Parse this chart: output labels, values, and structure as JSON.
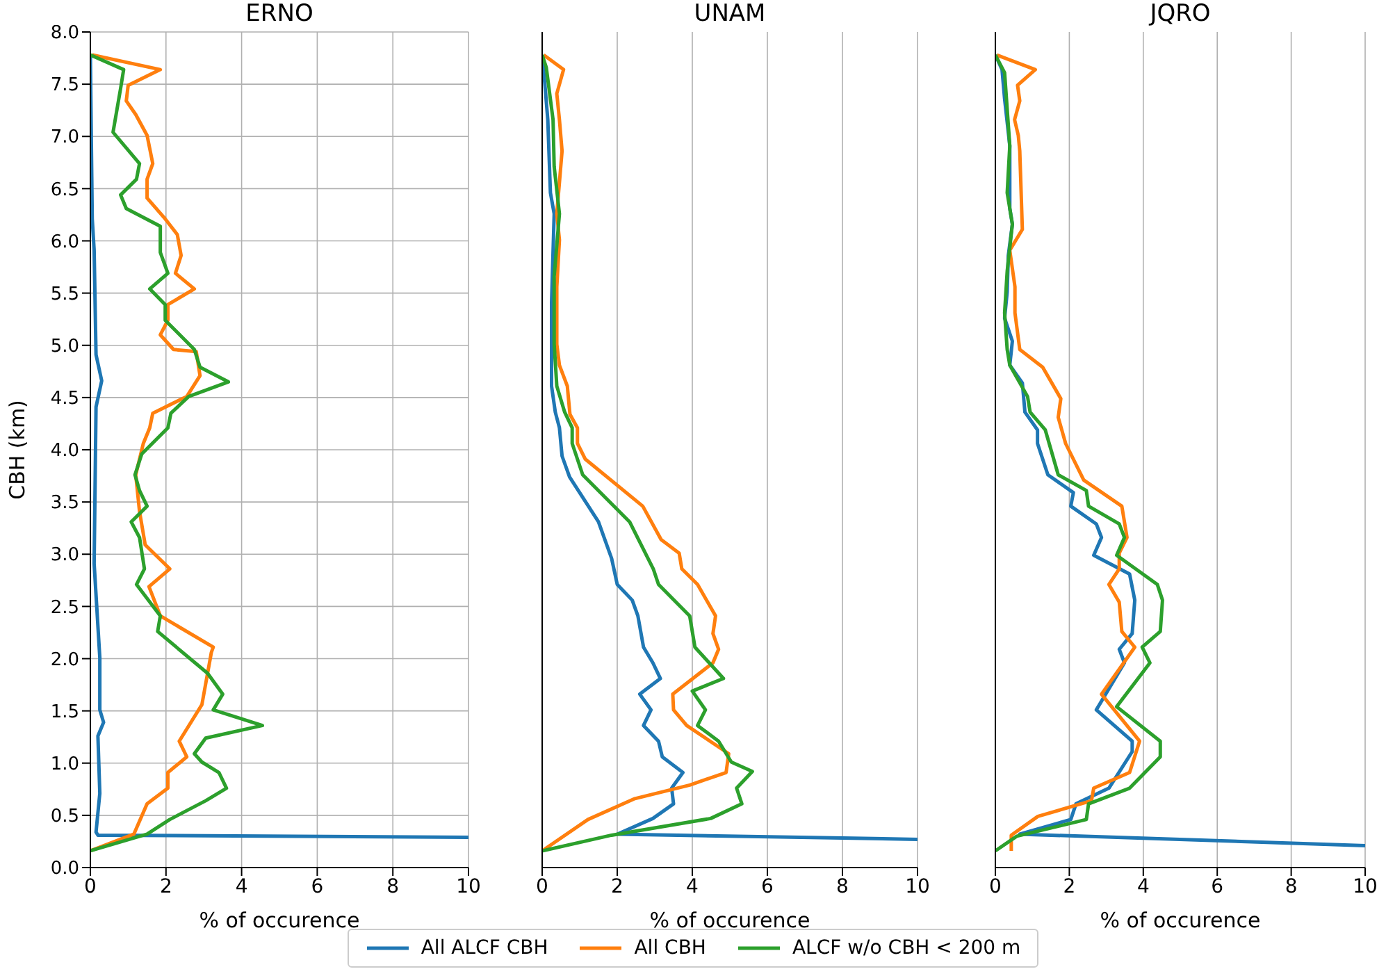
{
  "chart_data": [
    {
      "type": "line",
      "title": "ERNO",
      "xlabel": "% of occurence",
      "ylabel": "CBH (km)",
      "xlim": [
        0,
        10
      ],
      "xticks": [
        0,
        2,
        4,
        6,
        8,
        10
      ],
      "ylim": [
        0,
        8
      ],
      "yticks": [
        {
          "value": 0,
          "label": "0.0"
        },
        0.5,
        {
          "value": 1,
          "label": "1.0"
        },
        1.5,
        {
          "value": 2,
          "label": "2.0"
        },
        2.5,
        {
          "value": 3,
          "label": "3.0"
        },
        3.5,
        {
          "value": 4,
          "label": "4.0"
        },
        4.5,
        {
          "value": 5,
          "label": "5.0"
        },
        5.5,
        {
          "value": 6,
          "label": "6.0"
        },
        6.5,
        {
          "value": 7,
          "label": "7.0"
        },
        7.5,
        {
          "value": 8,
          "label": "8.0"
        }
      ],
      "grid": true,
      "legend": "bottom",
      "marker": "none",
      "line_style": "solid",
      "series": [
        {
          "name": "All ALCF CBH",
          "color": "#1f77b4",
          "x": [
            0,
            0.05,
            0.1,
            0.15,
            0.3,
            0.15,
            0.1,
            0.25,
            0.25,
            0.35,
            0.2,
            0.25,
            0.15,
            0.2,
            10
          ],
          "values": [
            7.78,
            6.21,
            5.91,
            4.91,
            4.66,
            4.41,
            2.91,
            2.01,
            1.51,
            1.39,
            1.26,
            0.71,
            0.34,
            0.31,
            0.29
          ]
        },
        {
          "name": "All CBH",
          "color": "#ff7f0e",
          "x": [
            0,
            1.15,
            1.5,
            2.05,
            2.05,
            2.55,
            2.35,
            2.95,
            3.2,
            3.25,
            1.85,
            1.55,
            2.1,
            1.45,
            1.3,
            1.2,
            1.4,
            1.57,
            1.65,
            2.55,
            2.9,
            2.8,
            2.2,
            1.85,
            2.05,
            2.05,
            2.75,
            2.25,
            2.4,
            2.3,
            1.98,
            1.5,
            1.5,
            1.65,
            1.5,
            1.2,
            0.95,
            1.0,
            1.85,
            0.05
          ],
          "values": [
            0.16,
            0.32,
            0.61,
            0.76,
            0.91,
            1.06,
            1.21,
            1.56,
            2.06,
            2.11,
            2.41,
            2.69,
            2.86,
            3.09,
            3.41,
            3.76,
            4.06,
            4.21,
            4.35,
            4.51,
            4.71,
            4.94,
            4.96,
            5.1,
            5.24,
            5.39,
            5.54,
            5.69,
            5.86,
            6.06,
            6.21,
            6.41,
            6.59,
            6.74,
            7.01,
            7.21,
            7.34,
            7.49,
            7.64,
            7.78
          ]
        },
        {
          "name": "ALCF w/o CBH < 200 m",
          "color": "#2ca02c",
          "x": [
            0,
            1.5,
            2.1,
            3.05,
            3.6,
            3.4,
            2.95,
            2.75,
            3.05,
            4.55,
            3.25,
            3.5,
            3.1,
            1.78,
            1.85,
            1.22,
            1.43,
            1.3,
            1.08,
            1.5,
            1.3,
            1.18,
            1.36,
            2.05,
            2.13,
            2.6,
            3.65,
            2.9,
            2.75,
            1.98,
            1.98,
            1.57,
            2.05,
            1.85,
            1.85,
            0.95,
            0.8,
            1.22,
            1.3,
            0.6,
            0.8,
            0.88,
            0
          ],
          "values": [
            0.16,
            0.32,
            0.46,
            0.64,
            0.76,
            0.91,
            1.01,
            1.09,
            1.24,
            1.36,
            1.51,
            1.66,
            1.86,
            2.26,
            2.41,
            2.71,
            2.86,
            3.16,
            3.31,
            3.46,
            3.61,
            3.76,
            3.96,
            4.21,
            4.35,
            4.51,
            4.65,
            4.79,
            4.96,
            5.24,
            5.39,
            5.54,
            5.69,
            5.89,
            6.14,
            6.31,
            6.44,
            6.59,
            6.74,
            7.04,
            7.46,
            7.64,
            7.78
          ]
        }
      ]
    },
    {
      "type": "line",
      "title": "UNAM",
      "xlabel": "% of occurence",
      "xlim": [
        0,
        10
      ],
      "xticks": [
        0,
        2,
        4,
        6,
        8,
        10
      ],
      "ylim": [
        0,
        8
      ],
      "yticks": [
        0,
        0.5,
        1,
        1.5,
        2,
        2.5,
        3,
        3.5,
        4,
        4.5,
        5,
        5.5,
        6,
        6.5,
        7,
        7.5,
        8
      ],
      "tick_labels": "x",
      "grid": true,
      "marker": "none",
      "line_style": "solid",
      "series": [
        {
          "color": "#1f77b4",
          "x": [
            10,
            2.0,
            2.95,
            3.5,
            3.45,
            3.75,
            3.2,
            3.1,
            2.7,
            2.9,
            2.6,
            3.15,
            2.95,
            2.7,
            2.55,
            2.4,
            2.0,
            1.85,
            1.5,
            0.73,
            0.53,
            0.46,
            0.35,
            0.25,
            0.25,
            0.32,
            0.22,
            0.15,
            0.07,
            0
          ],
          "values": [
            0.27,
            0.32,
            0.47,
            0.61,
            0.76,
            0.91,
            1.06,
            1.21,
            1.36,
            1.51,
            1.66,
            1.81,
            1.96,
            2.11,
            2.41,
            2.56,
            2.71,
            2.96,
            3.31,
            3.74,
            3.94,
            4.21,
            4.36,
            4.61,
            5.41,
            6.26,
            6.46,
            7.16,
            7.51,
            7.78
          ]
        },
        {
          "color": "#ff7f0e",
          "x": [
            0,
            1.22,
            2.47,
            3.93,
            4.9,
            4.97,
            3.85,
            3.5,
            3.48,
            4.55,
            4.7,
            4.55,
            4.62,
            4.14,
            3.72,
            3.65,
            3.17,
            2.68,
            1.15,
            0.94,
            0.94,
            0.74,
            0.67,
            0.46,
            0.39,
            0.39,
            0.46,
            0.39,
            0.53,
            0.46,
            0.39,
            0.57,
            0.04
          ],
          "values": [
            0.16,
            0.46,
            0.66,
            0.79,
            0.91,
            1.09,
            1.36,
            1.51,
            1.66,
            1.96,
            2.09,
            2.24,
            2.41,
            2.71,
            2.86,
            3.01,
            3.14,
            3.46,
            3.91,
            4.06,
            4.21,
            4.34,
            4.61,
            4.81,
            5.01,
            5.56,
            6.01,
            6.26,
            6.86,
            7.16,
            7.41,
            7.64,
            7.78
          ]
        },
        {
          "color": "#2ca02c",
          "x": [
            0,
            1.85,
            4.49,
            5.32,
            5.18,
            5.6,
            5.04,
            4.7,
            4.14,
            4.35,
            4.0,
            4.83,
            4.07,
            3.93,
            3.1,
            2.96,
            2.33,
            1.08,
            0.8,
            0.8,
            0.6,
            0.39,
            0.32,
            0.32,
            0.46,
            0.32,
            0.29,
            0.11,
            0
          ],
          "values": [
            0.16,
            0.31,
            0.47,
            0.61,
            0.76,
            0.92,
            1.01,
            1.21,
            1.36,
            1.51,
            1.69,
            1.81,
            2.11,
            2.41,
            2.71,
            2.86,
            3.31,
            3.76,
            4.06,
            4.21,
            4.36,
            4.61,
            5.01,
            5.66,
            6.26,
            6.71,
            7.16,
            7.66,
            7.78
          ]
        }
      ]
    },
    {
      "type": "line",
      "title": "JQRO",
      "xlabel": "% of occurence",
      "xlim": [
        0,
        10
      ],
      "xticks": [
        0,
        2,
        4,
        6,
        8,
        10
      ],
      "ylim": [
        0,
        8
      ],
      "yticks": [
        0,
        0.5,
        1,
        1.5,
        2,
        2.5,
        3,
        3.5,
        4,
        4.5,
        5,
        5.5,
        6,
        6.5,
        7,
        7.5,
        8
      ],
      "tick_labels": "x",
      "grid": true,
      "marker": "none",
      "line_style": "solid",
      "series": [
        {
          "color": "#1f77b4",
          "x": [
            10,
            0.66,
            2.04,
            2.18,
            3.07,
            3.7,
            3.7,
            2.73,
            3.49,
            3.35,
            3.7,
            3.77,
            3.63,
            2.66,
            2.87,
            2.73,
            2.04,
            2.11,
            1.42,
            1.14,
            1.14,
            0.8,
            0.73,
            0.39,
            0.46,
            0.25,
            0.32,
            0.35,
            0.46,
            0.39,
            0.39,
            0.25,
            0.18,
            0
          ],
          "values": [
            0.21,
            0.32,
            0.46,
            0.61,
            0.76,
            1.11,
            1.21,
            1.51,
            1.96,
            2.09,
            2.24,
            2.56,
            2.81,
            2.99,
            3.16,
            3.29,
            3.46,
            3.59,
            3.76,
            4.06,
            4.19,
            4.36,
            4.64,
            4.81,
            5.04,
            5.26,
            5.51,
            5.86,
            6.16,
            6.31,
            6.91,
            7.36,
            7.64,
            7.78
          ]
        },
        {
          "color": "#ff7f0e",
          "x": [
            0.43,
            0.43,
            1.15,
            2.6,
            2.66,
            3.63,
            3.9,
            2.87,
            3.77,
            3.42,
            3.35,
            3.07,
            3.35,
            3.35,
            3.56,
            3.42,
            2.39,
            1.9,
            1.7,
            1.77,
            1.28,
            0.66,
            0.53,
            0.53,
            0.39,
            0.73,
            0.66,
            0.62,
            0.52,
            0.66,
            0.6,
            1.08,
            0.04
          ],
          "values": [
            0.16,
            0.31,
            0.49,
            0.64,
            0.76,
            0.91,
            1.21,
            1.66,
            2.11,
            2.26,
            2.54,
            2.71,
            2.86,
            3.01,
            3.16,
            3.46,
            3.71,
            4.06,
            4.31,
            4.49,
            4.79,
            4.96,
            5.31,
            5.56,
            5.91,
            6.11,
            6.86,
            7.01,
            7.16,
            7.34,
            7.49,
            7.64,
            7.78
          ]
        },
        {
          "color": "#2ca02c",
          "x": [
            0,
            0.58,
            2.46,
            2.52,
            3.63,
            4.46,
            4.46,
            3.28,
            4.18,
            3.97,
            4.46,
            4.52,
            4.38,
            3.28,
            3.49,
            3.35,
            2.52,
            2.46,
            1.7,
            1.35,
            0.94,
            0.87,
            0.39,
            0.32,
            0.25,
            0.32,
            0.46,
            0.32,
            0.39,
            0.25,
            0
          ],
          "values": [
            0.16,
            0.3,
            0.46,
            0.61,
            0.76,
            1.06,
            1.21,
            1.54,
            1.96,
            2.11,
            2.26,
            2.56,
            2.71,
            2.99,
            3.16,
            3.29,
            3.46,
            3.61,
            3.76,
            4.19,
            4.36,
            4.51,
            4.81,
            4.96,
            5.31,
            5.71,
            6.16,
            6.46,
            6.91,
            7.61,
            7.78
          ]
        }
      ]
    }
  ]
}
